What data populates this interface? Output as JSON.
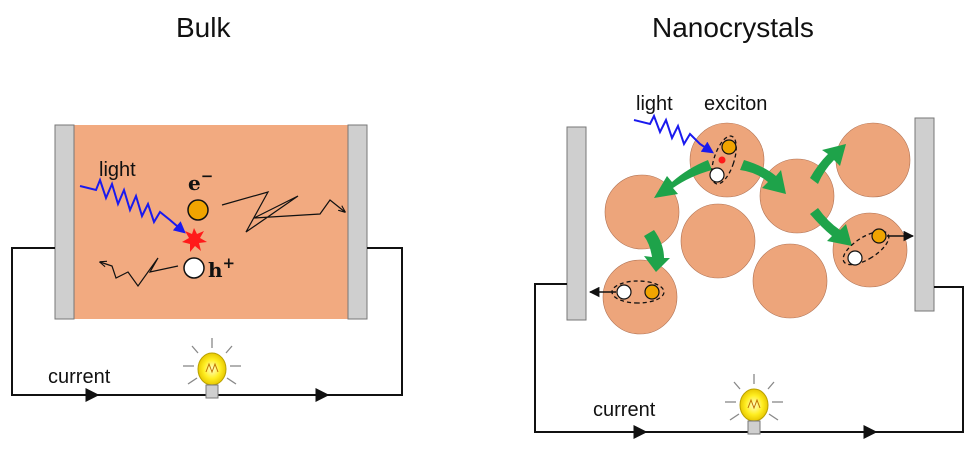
{
  "titles": {
    "bulk": "Bulk",
    "nano": "Nanocrystals"
  },
  "bulk": {
    "light": "light",
    "electron": "e",
    "electron_sup": "−",
    "hole": "h",
    "hole_sup": "+",
    "current": "current"
  },
  "nano": {
    "light": "light",
    "exciton": "exciton",
    "current": "current"
  },
  "colors": {
    "slab": "#f2aa80",
    "crystal": "#eda57b",
    "electrode": "#cfcfcf",
    "light_wave": "#1a1aee",
    "electron": "#f0a400",
    "flash": "#ff1a1a",
    "arrow": "#1ea34a",
    "bulb": "#ffee22"
  },
  "icons": [
    "light-wave-icon",
    "lightbulb-icon",
    "electron-icon",
    "hole-icon",
    "recombination-flash-icon",
    "transfer-arrow-icon"
  ]
}
